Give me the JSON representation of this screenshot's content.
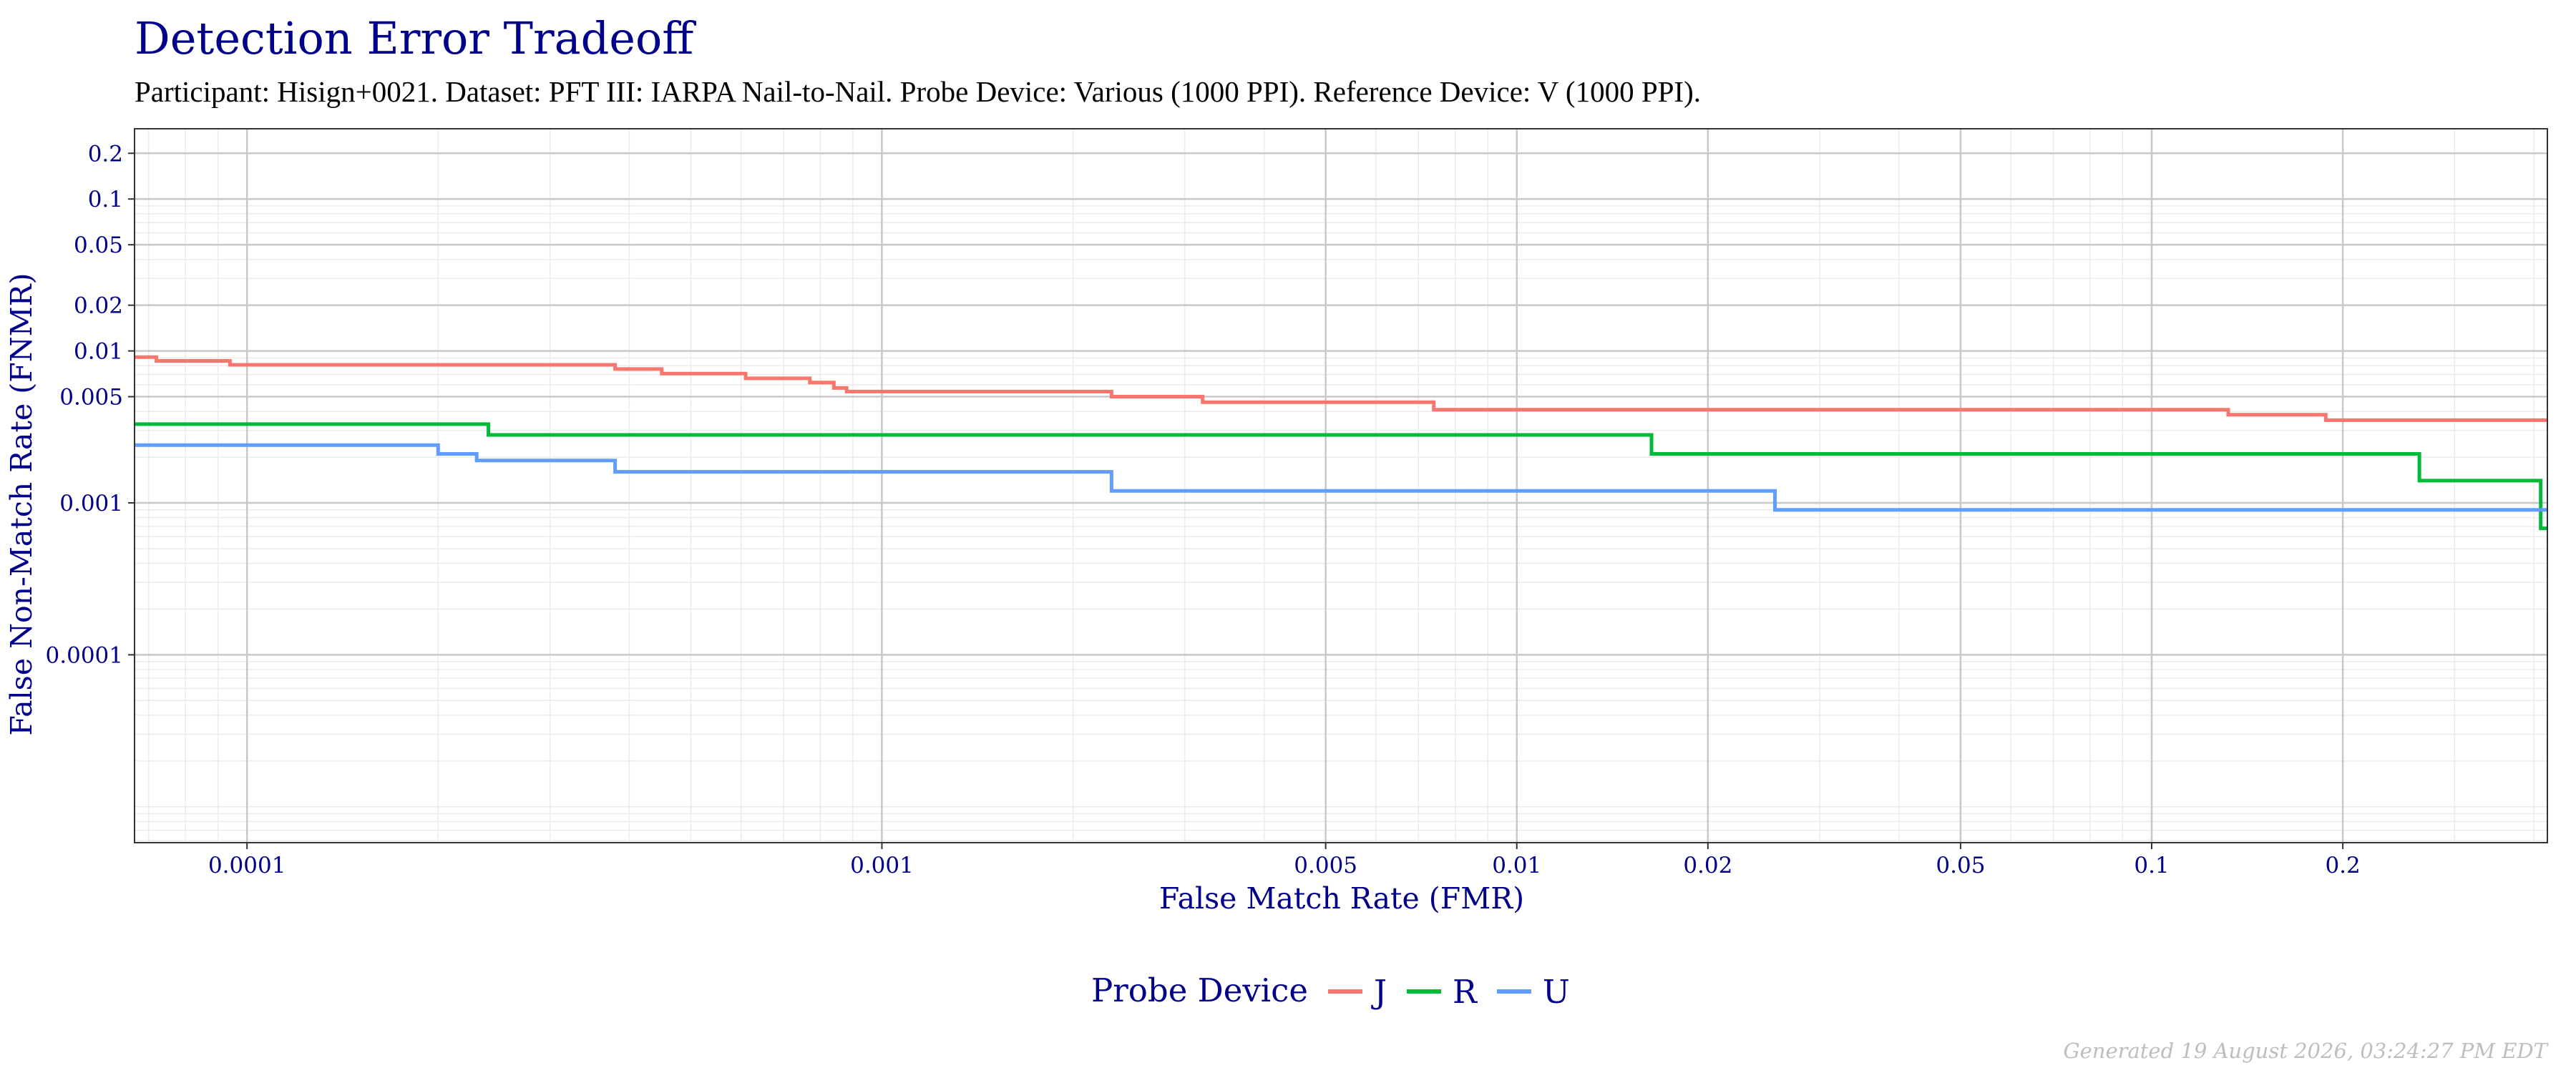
{
  "chart_data": {
    "type": "line",
    "title": "Detection Error Tradeoff",
    "subtitle": "Participant: Hisign+0021. Dataset: PFT III: IARPA Nail-to-Nail. Probe Device: Various (1000 PPI). Reference Device: V (1000 PPI).",
    "xlabel": "False Match Rate (FMR)",
    "ylabel": "False Non-Match Rate (FNMR)",
    "x_scale": "log",
    "y_scale": "log",
    "xlim": [
      6.65e-05,
      0.42
    ],
    "ylim": [
      5.8e-06,
      0.29
    ],
    "x_ticks": [
      {
        "value": 0.0001,
        "label": "0.0001"
      },
      {
        "value": 0.001,
        "label": "0.001"
      },
      {
        "value": 0.005,
        "label": "0.005"
      },
      {
        "value": 0.01,
        "label": "0.01"
      },
      {
        "value": 0.02,
        "label": "0.02"
      },
      {
        "value": 0.05,
        "label": "0.05"
      },
      {
        "value": 0.1,
        "label": "0.1"
      },
      {
        "value": 0.2,
        "label": "0.2"
      }
    ],
    "y_ticks": [
      {
        "value": 0.0001,
        "label": "0.0001"
      },
      {
        "value": 0.001,
        "label": "0.001"
      },
      {
        "value": 0.005,
        "label": "0.005"
      },
      {
        "value": 0.01,
        "label": "0.01"
      },
      {
        "value": 0.02,
        "label": "0.02"
      },
      {
        "value": 0.05,
        "label": "0.05"
      },
      {
        "value": 0.1,
        "label": "0.1"
      },
      {
        "value": 0.2,
        "label": "0.2"
      }
    ],
    "grid": true,
    "legend": {
      "title": "Probe Device",
      "position": "bottom"
    },
    "series": [
      {
        "name": "J",
        "color": "#F8766D",
        "step": "post",
        "points": [
          [
            6.65e-05,
            0.0091
          ],
          [
            7.2e-05,
            0.0086
          ],
          [
            9.4e-05,
            0.0081
          ],
          [
            0.00038,
            0.0076
          ],
          [
            0.00045,
            0.0071
          ],
          [
            0.00061,
            0.0066
          ],
          [
            0.00077,
            0.0062
          ],
          [
            0.00084,
            0.0057
          ],
          [
            0.00088,
            0.0054
          ],
          [
            0.0023,
            0.005
          ],
          [
            0.0032,
            0.0046
          ],
          [
            0.0074,
            0.0041
          ],
          [
            0.132,
            0.0038
          ],
          [
            0.188,
            0.0035
          ],
          [
            0.42,
            0.0035
          ]
        ]
      },
      {
        "name": "R",
        "color": "#00BA38",
        "step": "post",
        "points": [
          [
            6.65e-05,
            0.0033
          ],
          [
            0.00024,
            0.0028
          ],
          [
            0.0163,
            0.0021
          ],
          [
            0.264,
            0.0014
          ],
          [
            0.41,
            0.00068
          ],
          [
            0.42,
            0.00068
          ]
        ]
      },
      {
        "name": "U",
        "color": "#619CFF",
        "step": "post",
        "points": [
          [
            6.65e-05,
            0.0024
          ],
          [
            0.0002,
            0.0021
          ],
          [
            0.00023,
            0.0019
          ],
          [
            0.00038,
            0.0016
          ],
          [
            0.0023,
            0.0012
          ],
          [
            0.0255,
            0.0009
          ],
          [
            0.42,
            0.0009
          ]
        ]
      }
    ]
  },
  "footer": {
    "generated": "Generated 19 August 2026, 03:24:27 PM EDT"
  },
  "colors": {
    "title": "#00008B",
    "axis_text": "#00008B",
    "grid_major": "#C8C8C8",
    "grid_minor": "#EBEBEB",
    "footer": "#BEBEBE"
  }
}
